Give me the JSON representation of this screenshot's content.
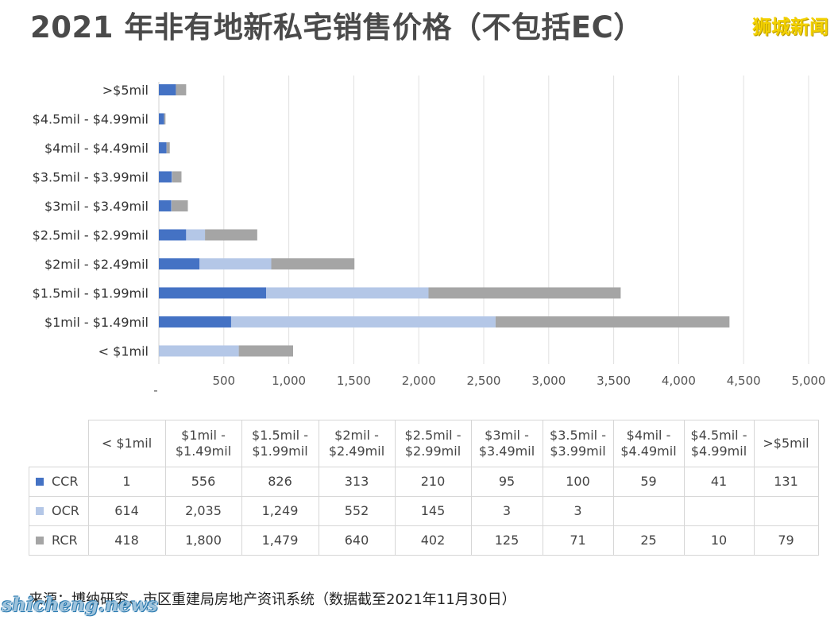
{
  "header": {
    "title": "2021 年非有地新私宅销售价格（不包括EC）",
    "brand": "狮城新闻"
  },
  "colors": {
    "CCR": "#4472c4",
    "OCR": "#b4c7e7",
    "RCR": "#a5a5a5",
    "grid": "#e0e0e0"
  },
  "chart_data": {
    "type": "bar",
    "orientation": "horizontal",
    "stacked": true,
    "title": "2021 年非有地新私宅销售价格（不包括EC）",
    "categories": [
      "< $1mil",
      "$1mil - $1.49mil",
      "$1.5mil - $1.99mil",
      "$2mil - $2.49mil",
      "$2.5mil - $2.99mil",
      "$3mil - $3.49mil",
      "$3.5mil - $3.99mil",
      "$4mil - $4.49mil",
      "$4.5mil - $4.99mil",
      ">$5mil"
    ],
    "series": [
      {
        "name": "CCR",
        "values": [
          1,
          556,
          826,
          313,
          210,
          95,
          100,
          59,
          41,
          131
        ]
      },
      {
        "name": "OCR",
        "values": [
          614,
          2035,
          1249,
          552,
          145,
          3,
          3,
          0,
          0,
          0
        ]
      },
      {
        "name": "RCR",
        "values": [
          418,
          1800,
          1479,
          640,
          402,
          125,
          71,
          25,
          10,
          79
        ]
      }
    ],
    "xlim": [
      0,
      5000
    ],
    "xticks": [
      "-",
      "500",
      "1,000",
      "1,500",
      "2,000",
      "2,500",
      "3,000",
      "3,500",
      "4,000",
      "4,500",
      "5,000"
    ],
    "grid": true,
    "legend": "table-below"
  },
  "table": {
    "headers": [
      "< $1mil",
      "$1mil -\n$1.49mil",
      "$1.5mil -\n$1.99mil",
      "$2mil -\n$2.49mil",
      "$2.5mil -\n$2.99mil",
      "$3mil -\n$3.49mil",
      "$3.5mil -\n$3.99mil",
      "$4mil -\n$4.49mil",
      "$4.5mil -\n$4.99mil",
      ">$5mil"
    ],
    "rows": [
      {
        "label": "CCR",
        "cells": [
          "1",
          "556",
          "826",
          "313",
          "210",
          "95",
          "100",
          "59",
          "41",
          "131"
        ]
      },
      {
        "label": "OCR",
        "cells": [
          "614",
          "2,035",
          "1,249",
          "552",
          "145",
          "3",
          "3",
          "",
          "",
          ""
        ]
      },
      {
        "label": "RCR",
        "cells": [
          "418",
          "1,800",
          "1,479",
          "640",
          "402",
          "125",
          "71",
          "25",
          "10",
          "79"
        ]
      }
    ]
  },
  "footer": {
    "source": "来源：博纳研究、市区重建局房地产资讯系统（数据截至2021年11月30日）",
    "watermark": "shicheng.news"
  }
}
